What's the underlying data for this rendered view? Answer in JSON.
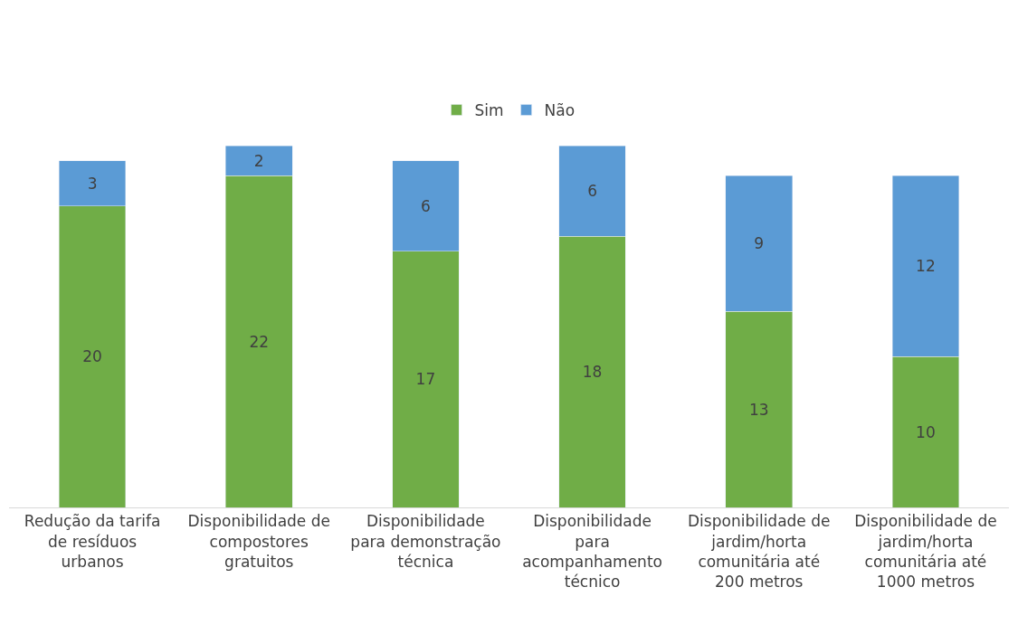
{
  "chart_data": {
    "type": "bar",
    "stacked": true,
    "data_labels": true,
    "legend": "top",
    "tick_labels": "x",
    "categories": [
      "Redução da tarifa de resíduos urbanos",
      "Disponibilidade de compostores gratuitos",
      "Disponibilidade para demonstração técnica",
      "Disponibilidade para acompanhamento técnico",
      "Disponibilidade de jardim/horta comunitária até 200 metros",
      "Disponibilidade de jardim/horta comunitária até 1000 metros"
    ],
    "series": [
      {
        "name": "Sim",
        "color": "#70ad47",
        "values": [
          20,
          22,
          17,
          18,
          13,
          10
        ]
      },
      {
        "name": "Não",
        "color": "#5b9bd5",
        "values": [
          3,
          2,
          6,
          6,
          9,
          12
        ]
      }
    ]
  }
}
